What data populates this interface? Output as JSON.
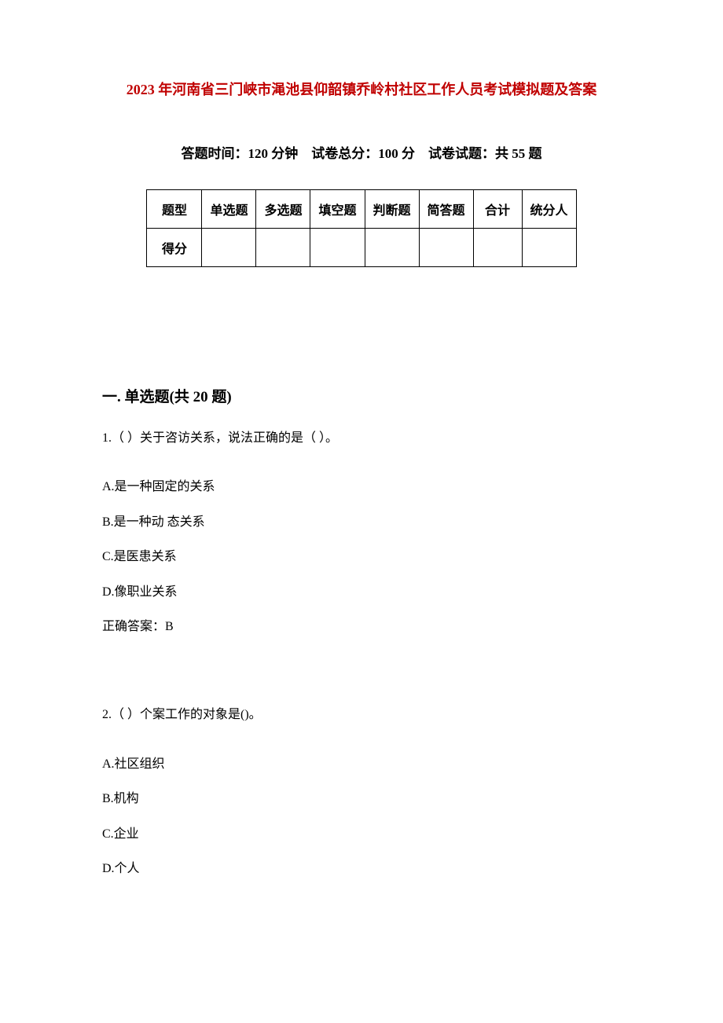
{
  "title_color": "#c00000",
  "title": "2023 年河南省三门峡市渑池县仰韶镇乔岭村社区工作人员考试模拟题及答案",
  "exam_info": "答题时间：120 分钟 试卷总分：100 分 试卷试题：共 55 题",
  "table": {
    "row1": [
      "题型",
      "单选题",
      "多选题",
      "填空题",
      "判断题",
      "简答题",
      "合计",
      "统分人"
    ],
    "row2_label": "得分"
  },
  "section_title": "一. 单选题(共 20 题)",
  "q1": {
    "text": "1.（ ）关于咨访关系，说法正确的是（ ）。",
    "opt_a": "A.是一种固定的关系",
    "opt_b": "B.是一种动 态关系",
    "opt_c": "C.是医患关系",
    "opt_d": "D.像职业关系",
    "answer": "正确答案：B"
  },
  "q2": {
    "text": "2.（ ）个案工作的对象是()。",
    "opt_a": "A.社区组织",
    "opt_b": "B.机构",
    "opt_c": "C.企业",
    "opt_d": "D.个人"
  }
}
